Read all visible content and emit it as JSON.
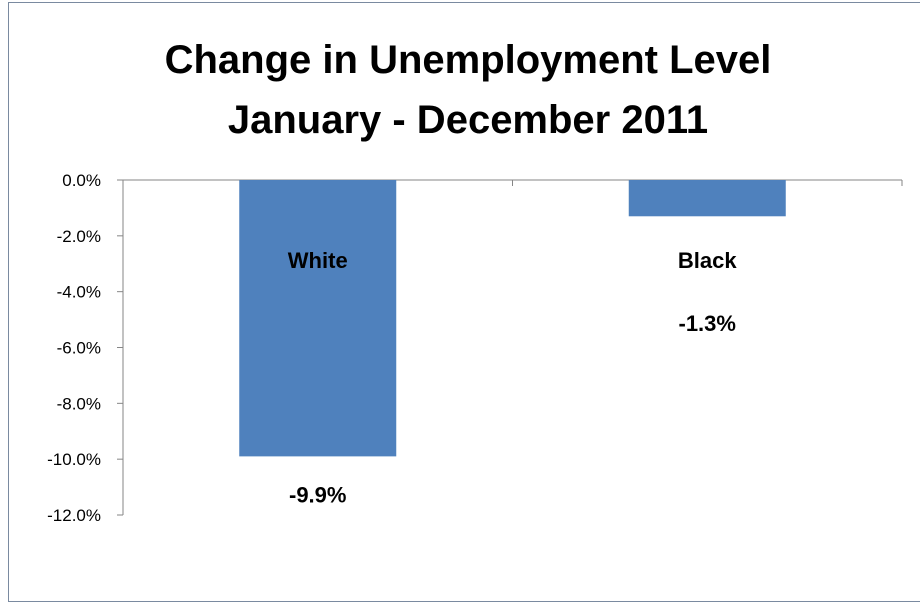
{
  "chart_data": {
    "type": "bar",
    "title": [
      "Change in Unemployment Level",
      "January - December 2011"
    ],
    "categories": [
      "White",
      "Black"
    ],
    "values": [
      -9.9,
      -1.3
    ],
    "data_labels": [
      "-9.9%",
      "-1.3%"
    ],
    "ylim": [
      -12.0,
      0.0
    ],
    "yticks": [
      0.0,
      -2.0,
      -4.0,
      -6.0,
      -8.0,
      -10.0,
      -12.0
    ],
    "ytick_labels": [
      "0.0%",
      "-2.0%",
      "-4.0%",
      "-6.0%",
      "-8.0%",
      "-10.0%",
      "-12.0%"
    ],
    "bar_color": "#4f81bd",
    "grid": false,
    "legend": "none"
  }
}
